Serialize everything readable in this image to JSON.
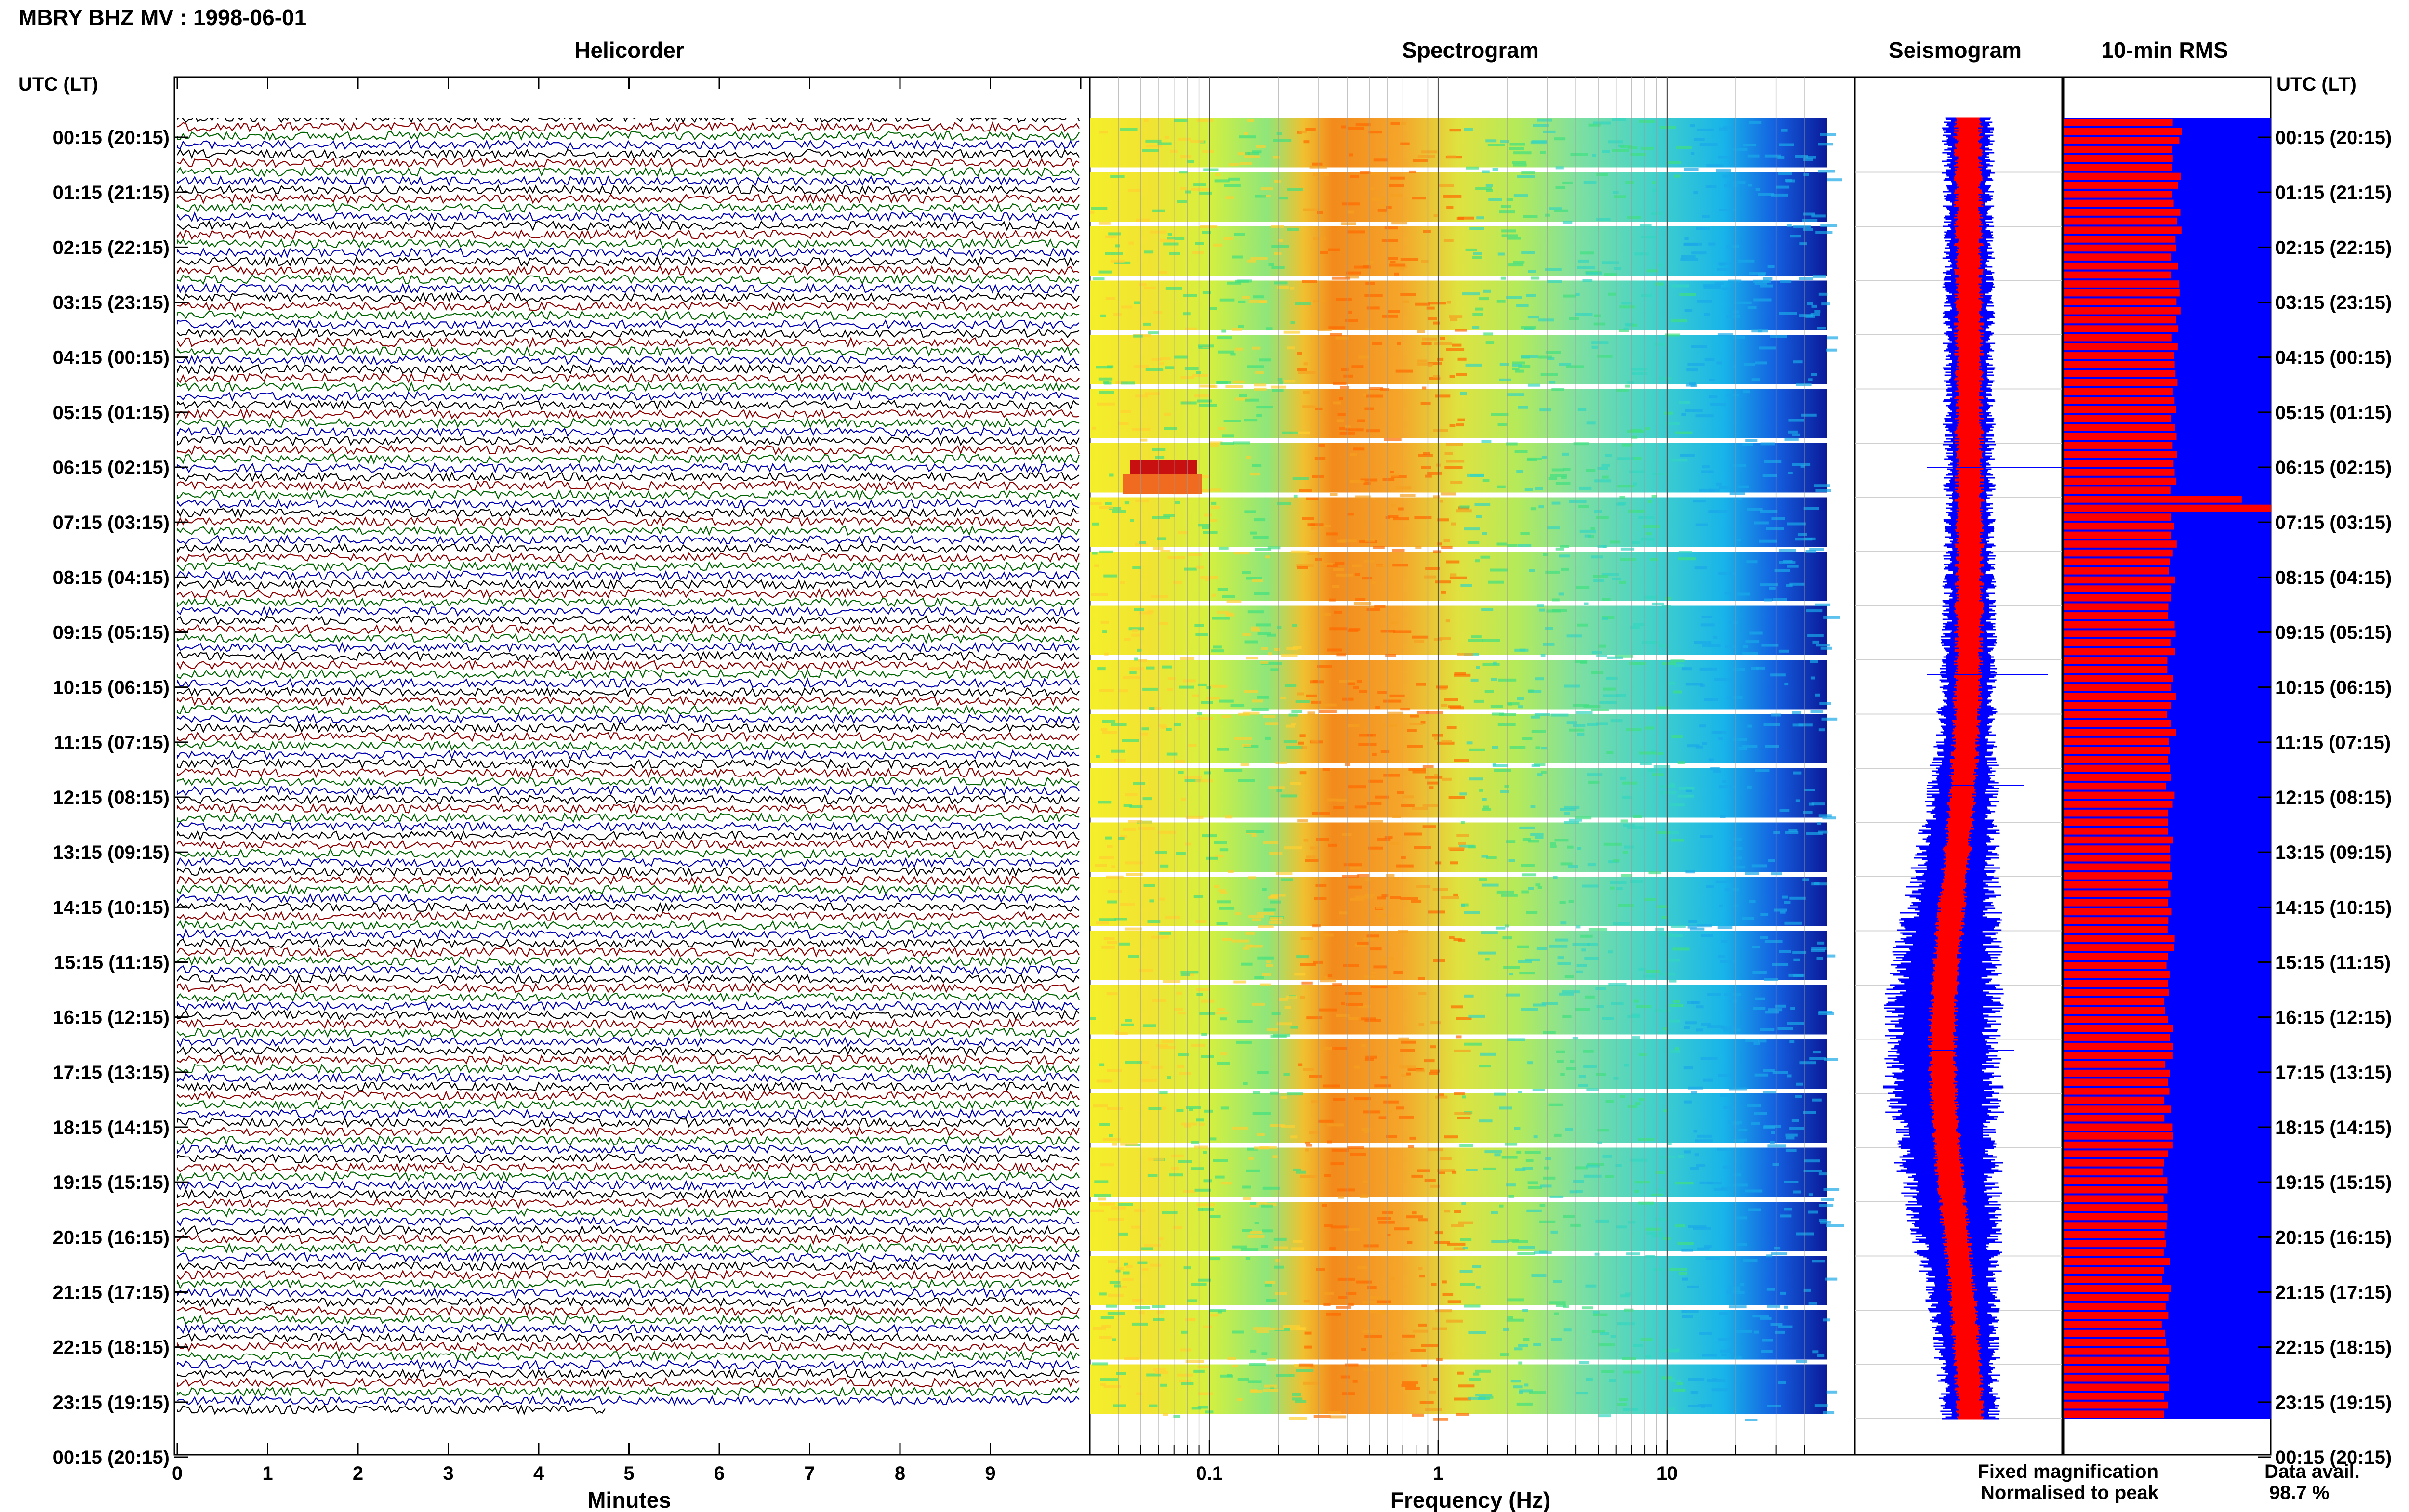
{
  "header": {
    "title": "MBRY BHZ MV : 1998-06-01"
  },
  "panels": {
    "helicorder": "Helicorder",
    "spectrogram": "Spectrogram",
    "seismogram": "Seismogram",
    "rms": "10-min RMS"
  },
  "axes": {
    "utc_label_left": "UTC (LT)",
    "utc_label_right": "UTC (LT)",
    "time_ticks": [
      "00:15 (20:15)",
      "01:15 (21:15)",
      "02:15 (22:15)",
      "03:15 (23:15)",
      "04:15 (00:15)",
      "05:15 (01:15)",
      "06:15 (02:15)",
      "07:15 (03:15)",
      "08:15 (04:15)",
      "09:15 (05:15)",
      "10:15 (06:15)",
      "11:15 (07:15)",
      "12:15 (08:15)",
      "13:15 (09:15)",
      "14:15 (10:15)",
      "15:15 (11:15)",
      "16:15 (12:15)",
      "17:15 (13:15)",
      "18:15 (14:15)",
      "19:15 (15:15)",
      "20:15 (16:15)",
      "21:15 (17:15)",
      "22:15 (18:15)",
      "23:15 (19:15)",
      "00:15 (20:15)"
    ],
    "minutes_label": "Minutes",
    "minutes_ticks": [
      "0",
      "1",
      "2",
      "3",
      "4",
      "5",
      "6",
      "7",
      "8",
      "9"
    ],
    "frequency_label": "Frequency (Hz)",
    "frequency_ticks": [
      "0.1",
      "1",
      "10"
    ]
  },
  "legend": {
    "fixed": "Fixed magnification",
    "normalised": "Normalised to peak",
    "fixed_color": "#0000ff",
    "normalised_color": "#ff0000"
  },
  "availability": {
    "label": "Data avail.",
    "value": "98.7 %"
  },
  "colors": {
    "trace_cycle": [
      "#000000",
      "#8b0000",
      "#006400",
      "#0000b0"
    ],
    "rms_fixed": "#0000ff",
    "rms_norm": "#ff0000"
  },
  "chart_data": [
    {
      "type": "line",
      "title": "Helicorder",
      "xlabel": "Minutes",
      "xlim": [
        0,
        10
      ],
      "rows_per_hour": 6,
      "hours": 24
    },
    {
      "type": "heatmap",
      "title": "Spectrogram",
      "xlabel": "Frequency (Hz)",
      "xscale": "log",
      "xlim": [
        0.03,
        50
      ]
    },
    {
      "type": "line",
      "title": "Seismogram",
      "series": [
        {
          "name": "Fixed magnification",
          "color": "#0000ff"
        },
        {
          "name": "Normalised to peak",
          "color": "#ff0000"
        }
      ]
    },
    {
      "type": "bar",
      "title": "10-min RMS",
      "series": [
        {
          "name": "Fixed magnification",
          "color": "#0000ff",
          "values_fraction": 1.0
        },
        {
          "name": "Normalised to peak",
          "color": "#ff0000",
          "values_fraction": 0.6
        }
      ]
    }
  ]
}
